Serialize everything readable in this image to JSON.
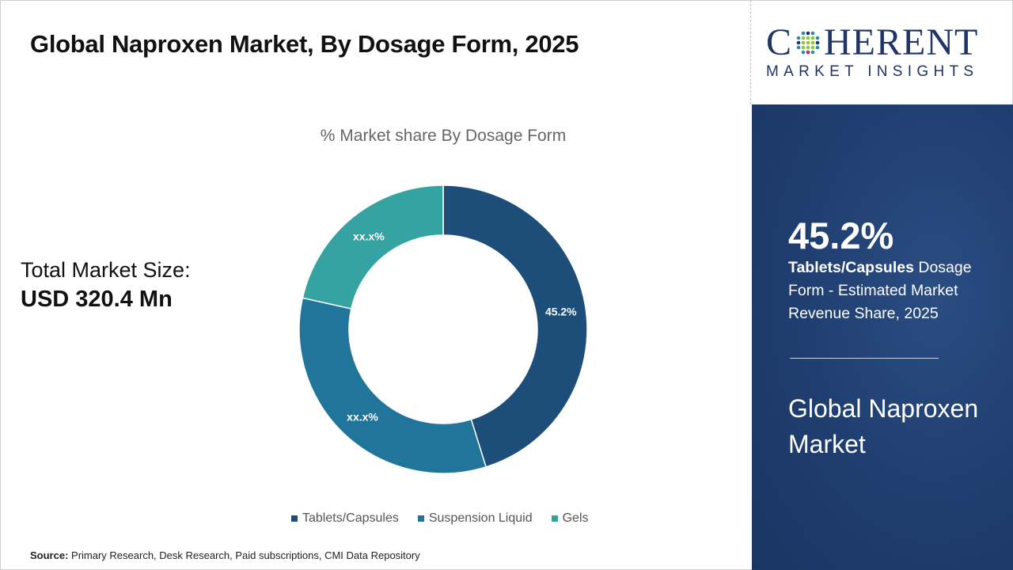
{
  "title": "Global Naproxen Market, By Dosage Form, 2025",
  "total_market": {
    "label": "Total Market Size:",
    "value": "USD 320.4 Mn"
  },
  "source": {
    "label": "Source:",
    "text": " Primary Research, Desk Research, Paid subscriptions, CMI Data Repository"
  },
  "logo": {
    "main_before": "C",
    "main_after": "HERENT",
    "sub": "MARKET INSIGHTS"
  },
  "panel": {
    "kpi": "45.2%",
    "desc_bold": "Tablets/Capsules",
    "desc_rest": " Dosage Form - Estimated Market Revenue Share, 2025",
    "market": "Global Naproxen Market",
    "bg_color": "#1f3d6f"
  },
  "chart_data": {
    "type": "pie",
    "donut": true,
    "title": "% Market share By Dosage Form",
    "categories": [
      "Tablets/Capsules",
      "Suspension Liquid",
      "Gels"
    ],
    "values": [
      45.2,
      33.3,
      21.5
    ],
    "data_labels": [
      "45.2%",
      "xx.x%",
      "xx.x%"
    ],
    "colors": [
      "#1d4e79",
      "#21759b",
      "#36a3a3"
    ],
    "legend_position": "bottom"
  }
}
